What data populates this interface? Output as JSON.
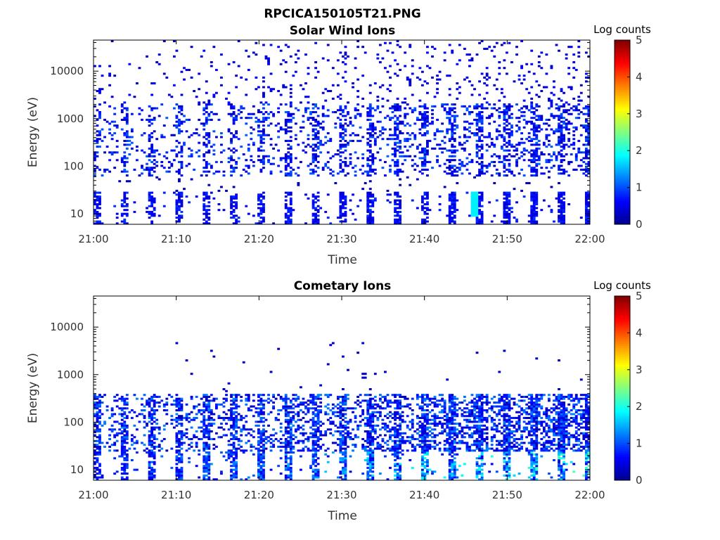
{
  "figure_title": "RPCICA150105T21.PNG",
  "chart_data": [
    {
      "type": "heatmap",
      "title": "Solar Wind Ions",
      "xlabel": "Time",
      "ylabel": "Energy (eV)",
      "x_ticks": [
        "21:00",
        "21:10",
        "21:20",
        "21:30",
        "21:40",
        "21:50",
        "22:00"
      ],
      "x_range": [
        "21:00",
        "22:00"
      ],
      "y_scale": "log",
      "y_ticks": [
        "10",
        "100",
        "1000",
        "10000"
      ],
      "y_range": [
        6,
        45000
      ],
      "colorbar": {
        "label": "Log counts",
        "range": [
          0,
          5
        ],
        "ticks": [
          "0",
          "1",
          "2",
          "3",
          "4",
          "5"
        ]
      },
      "colormap": [
        "#00008f",
        "#0000ff",
        "#0080ff",
        "#00ffff",
        "#80ff80",
        "#ffff00",
        "#ff8000",
        "#ff0000",
        "#800000"
      ],
      "pulse_period_min": 3.3,
      "description_values": {
        "background_level": 0.3,
        "low_energy_band_eV": [
          6,
          30
        ],
        "low_energy_band_level": 0.5,
        "peak_level": 1.8,
        "peak_time": "21:46",
        "peak_energy_eV": 15
      }
    },
    {
      "type": "heatmap",
      "title": "Cometary Ions",
      "xlabel": "Time",
      "ylabel": "Energy (eV)",
      "x_ticks": [
        "21:00",
        "21:10",
        "21:20",
        "21:30",
        "21:40",
        "21:50",
        "22:00"
      ],
      "x_range": [
        "21:00",
        "22:00"
      ],
      "y_scale": "log",
      "y_ticks": [
        "10",
        "100",
        "1000",
        "10000"
      ],
      "y_range": [
        6,
        45000
      ],
      "colorbar": {
        "label": "Log counts",
        "range": [
          0,
          5
        ],
        "ticks": [
          "0",
          "1",
          "2",
          "3",
          "4",
          "5"
        ]
      },
      "colormap": [
        "#00008f",
        "#0000ff",
        "#0080ff",
        "#00ffff",
        "#80ff80",
        "#ffff00",
        "#ff8000",
        "#ff0000",
        "#800000"
      ],
      "pulse_period_min": 3.3,
      "description_values": {
        "main_band_eV": [
          6,
          400
        ],
        "main_band_level": 0.8,
        "peak_level": 2.2,
        "peak_energy_eV": [
          8,
          20
        ],
        "sparse_high_energy_eV": [
          500,
          5000
        ]
      }
    }
  ]
}
